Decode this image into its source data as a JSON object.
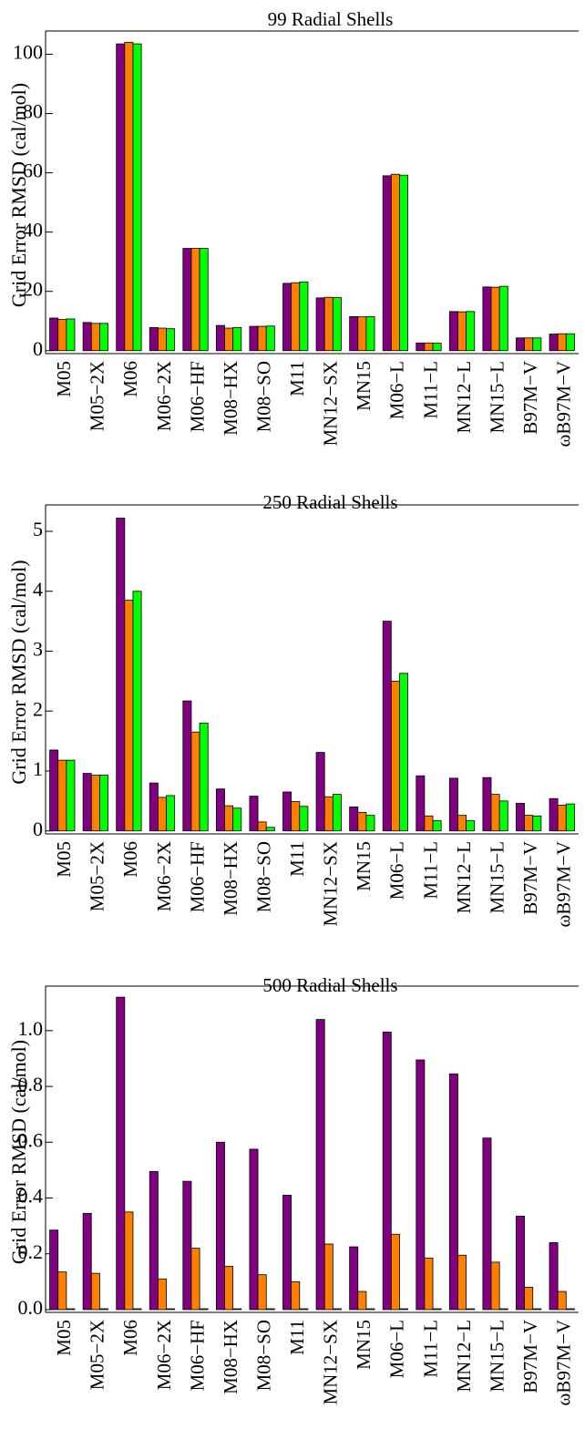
{
  "chart_data": [
    {
      "type": "bar",
      "title": "99 Radial Shells",
      "ylabel": "Grid Error RMSD (cal/mol)",
      "categories": [
        "M05",
        "M05−2X",
        "M06",
        "M06−2X",
        "M06−HF",
        "M08−HX",
        "M08−SO",
        "M11",
        "MN12−SX",
        "MN15",
        "M06−L",
        "M11−L",
        "MN12−L",
        "MN15−L",
        "B97M−V",
        "ωB97M−V"
      ],
      "series": [
        {
          "color": "#800080",
          "values": [
            11,
            9.5,
            103.5,
            7.8,
            34.5,
            8.5,
            8.2,
            22.7,
            17.8,
            11.5,
            59,
            2.6,
            13.2,
            21.5,
            4.3,
            5.6
          ]
        },
        {
          "color": "#ff8000",
          "values": [
            10.5,
            9.2,
            104,
            7.6,
            34.5,
            7.6,
            8.2,
            22.9,
            18,
            11.4,
            59.5,
            2.6,
            13.1,
            21.4,
            4.3,
            5.7
          ]
        },
        {
          "color": "#00ff00",
          "values": [
            10.7,
            9.2,
            103.5,
            7.4,
            34.5,
            7.8,
            8.3,
            23.2,
            17.9,
            11.5,
            59.2,
            2.5,
            13.2,
            21.7,
            4.3,
            5.7
          ]
        }
      ],
      "ylim": [
        -1,
        106
      ],
      "yticks": [
        0,
        20,
        40,
        60,
        80,
        100
      ]
    },
    {
      "type": "bar",
      "title": "250 Radial Shells",
      "ylabel": "Grid Error RMSD (cal/mol)",
      "categories": [
        "M05",
        "M05−2X",
        "M06",
        "M06−2X",
        "M06−HF",
        "M08−HX",
        "M08−SO",
        "M11",
        "MN12−SX",
        "MN15",
        "M06−L",
        "M11−L",
        "MN12−L",
        "MN15−L",
        "B97M−V",
        "ωB97M−V"
      ],
      "series": [
        {
          "color": "#800080",
          "values": [
            1.35,
            0.96,
            5.22,
            0.8,
            2.17,
            0.7,
            0.58,
            0.65,
            1.31,
            0.4,
            3.5,
            0.92,
            0.88,
            0.89,
            0.46,
            0.54
          ]
        },
        {
          "color": "#ff8000",
          "values": [
            1.18,
            0.93,
            3.85,
            0.56,
            1.65,
            0.42,
            0.15,
            0.49,
            0.57,
            0.31,
            2.5,
            0.25,
            0.26,
            0.61,
            0.26,
            0.43
          ]
        },
        {
          "color": "#00ff00",
          "values": [
            1.18,
            0.93,
            4.0,
            0.59,
            1.8,
            0.38,
            0.06,
            0.41,
            0.61,
            0.26,
            2.63,
            0.17,
            0.17,
            0.5,
            0.25,
            0.45
          ]
        }
      ],
      "ylim": [
        -0.05,
        5.35
      ],
      "yticks": [
        0,
        1,
        2,
        3,
        4,
        5
      ]
    },
    {
      "type": "bar",
      "title": "500 Radial Shells",
      "ylabel": "Grid Error RMSD (cal/mol)",
      "categories": [
        "M05",
        "M05−2X",
        "M06",
        "M06−2X",
        "M06−HF",
        "M08−HX",
        "M08−SO",
        "M11",
        "MN12−SX",
        "MN15",
        "M06−L",
        "M11−L",
        "MN12−L",
        "MN15−L",
        "B97M−V",
        "ωB97M−V"
      ],
      "series": [
        {
          "color": "#800080",
          "values": [
            0.285,
            0.345,
            1.12,
            0.495,
            0.46,
            0.6,
            0.575,
            0.41,
            1.04,
            0.225,
            0.995,
            0.895,
            0.845,
            0.615,
            0.335,
            0.24
          ]
        },
        {
          "color": "#ff8000",
          "values": [
            0.135,
            0.13,
            0.35,
            0.11,
            0.22,
            0.155,
            0.125,
            0.1,
            0.235,
            0.065,
            0.27,
            0.185,
            0.195,
            0.17,
            0.08,
            0.065
          ]
        },
        {
          "color": "#00ff00",
          "values": [
            0.003,
            0.003,
            0.003,
            0.003,
            0.003,
            0.003,
            0.003,
            0.003,
            0.003,
            0.003,
            0.003,
            0.003,
            0.003,
            0.003,
            0.003,
            0.003
          ]
        }
      ],
      "ylim": [
        -0.01,
        1.14
      ],
      "yticks": [
        {
          "value": 0,
          "label": "0.0"
        },
        {
          "value": 0.2,
          "label": "0.2"
        },
        {
          "value": 0.4,
          "label": "0.4"
        },
        {
          "value": 0.6,
          "label": "0.6"
        },
        {
          "value": 0.8,
          "label": "0.8"
        },
        {
          "value": 1,
          "label": "1.0"
        }
      ]
    }
  ]
}
